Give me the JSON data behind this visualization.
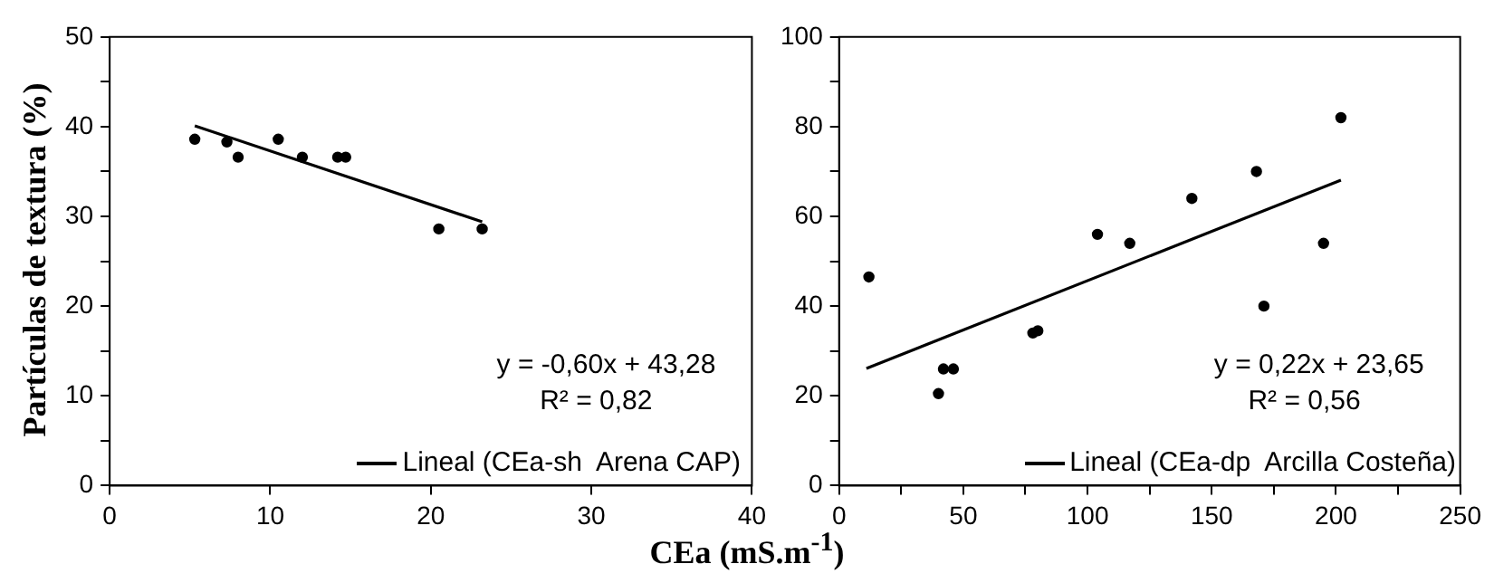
{
  "chart_data": [
    {
      "type": "scatter",
      "ylabel": "Partículas de textura (%)",
      "xlabel": "CEa (mS.m$^{-1}$)",
      "xlim": [
        0,
        40
      ],
      "xticks": [
        0,
        10,
        20,
        30,
        40
      ],
      "ylim": [
        0,
        50
      ],
      "yticks": [
        0,
        {
          "value": 5,
          "label": null
        },
        10,
        {
          "value": 15,
          "label": null
        },
        20,
        {
          "value": 25,
          "label": null
        },
        30,
        {
          "value": 35,
          "label": null
        },
        40,
        {
          "value": 45,
          "label": null
        },
        50
      ],
      "grid": false,
      "legend": "bottom right",
      "annotations": [
        "y = -0,60x + 43,28",
        "R² = 0,82"
      ],
      "series": [
        {
          "type": "scatter",
          "color": "#000000",
          "marker": "circle",
          "x": [
            5.3,
            7.3,
            8,
            10.5,
            12,
            14.2,
            14.7,
            20.5,
            23.2
          ],
          "values": [
            38.6,
            38.3,
            36.6,
            38.6,
            36.6,
            36.6,
            36.6,
            28.6,
            28.6
          ]
        },
        {
          "type": "line",
          "name": "Lineal (CEa-sh  Arena CAP)",
          "color": "#000000",
          "marker": "none",
          "line_style": "solid",
          "x": [
            5.3,
            23.2
          ],
          "values": [
            40.1,
            29.4
          ]
        }
      ]
    },
    {
      "type": "scatter",
      "xlim": [
        0,
        250
      ],
      "xticks": [
        0,
        {
          "value": 25,
          "label": null
        },
        50,
        {
          "value": 75,
          "label": null
        },
        100,
        {
          "value": 125,
          "label": null
        },
        150,
        {
          "value": 175,
          "label": null
        },
        200,
        {
          "value": 225,
          "label": null
        },
        250
      ],
      "ylim": [
        0,
        100
      ],
      "yticks": [
        0,
        {
          "value": 10,
          "label": null
        },
        20,
        {
          "value": 30,
          "label": null
        },
        40,
        {
          "value": 50,
          "label": null
        },
        60,
        {
          "value": 70,
          "label": null
        },
        80,
        {
          "value": 90,
          "label": null
        },
        100
      ],
      "grid": false,
      "legend": "bottom right",
      "annotations": [
        "y = 0,22x + 23,65",
        "R² = 0,56"
      ],
      "series": [
        {
          "type": "scatter",
          "color": "#000000",
          "marker": "circle",
          "x": [
            12,
            40,
            42,
            46,
            78,
            80,
            104,
            117,
            142,
            168,
            171,
            195,
            202
          ],
          "values": [
            46.5,
            20.5,
            26,
            26,
            34,
            34.5,
            56,
            54,
            64,
            70,
            40,
            54,
            82
          ]
        },
        {
          "type": "line",
          "name": "Lineal (CEa-dp  Arcilla Costeña)",
          "color": "#000000",
          "marker": "none",
          "line_style": "solid",
          "x": [
            11,
            202
          ],
          "values": [
            26.1,
            68.1
          ]
        }
      ]
    }
  ]
}
